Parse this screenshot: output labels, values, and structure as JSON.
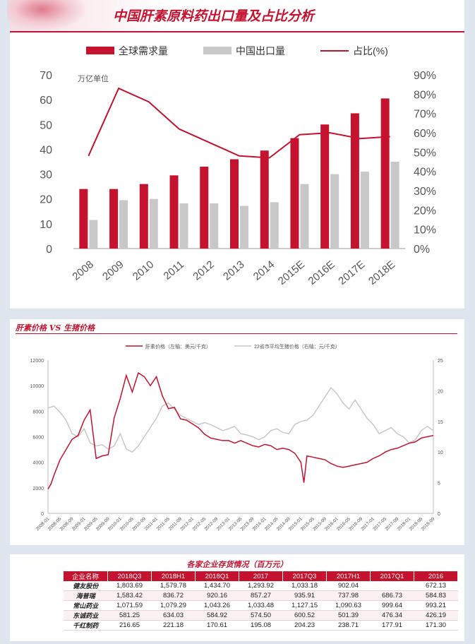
{
  "panel1": {
    "title": "中国肝素原料药出口量及占比分析",
    "unit_note": "万亿单位"
  },
  "panel2": {
    "title": "肝素价格 VS 生猪价格"
  },
  "panel3": {
    "title": "各家企业存货情况（百万元）",
    "table": {
      "headers": [
        "企业名称",
        "2018Q3",
        "2018H1",
        "2018Q1",
        "2017",
        "2017Q3",
        "2017H1",
        "2017Q1",
        "2016"
      ],
      "rows": [
        {
          "name": "健友股份",
          "cells": [
            "1,803.69",
            "1,579.78",
            "1,434.70",
            "1,293.92",
            "1,033.18",
            "902.04",
            "",
            "672.13"
          ]
        },
        {
          "name": "海普瑞",
          "cells": [
            "1,583.42",
            "836.72",
            "920.16",
            "857.27",
            "935.91",
            "737.98",
            "686.73",
            "584.83"
          ]
        },
        {
          "name": "常山药业",
          "cells": [
            "1,071.59",
            "1,079.29",
            "1,043.26",
            "1,033.48",
            "1,127.15",
            "1,090.63",
            "999.64",
            "993.21"
          ]
        },
        {
          "name": "东诚药业",
          "cells": [
            "581.25",
            "634.03",
            "584.92",
            "574.50",
            "600.52",
            "501.39",
            "476.34",
            "426.19"
          ]
        },
        {
          "name": "千红制药",
          "cells": [
            "216.65",
            "221.18",
            "170.61",
            "195.08",
            "204.23",
            "238.71",
            "177.91",
            "171.30"
          ]
        }
      ]
    }
  },
  "colors": {
    "red": "#c4122f",
    "gray": "#c8c8c8",
    "axis": "#555555"
  },
  "chart_data": [
    {
      "type": "bar",
      "title": "中国肝素原料药出口量及占比分析",
      "categories": [
        "2008",
        "2009",
        "2010",
        "2011",
        "2012",
        "2013",
        "2014",
        "2015E",
        "2016E",
        "2017E",
        "2018E"
      ],
      "series": [
        {
          "name": "全球需求量",
          "kind": "bar",
          "axis": "left",
          "values": [
            24,
            24,
            26,
            29.5,
            33,
            36,
            39.5,
            44.5,
            50,
            54.5,
            60.5
          ]
        },
        {
          "name": "中国出口量",
          "kind": "bar",
          "axis": "left",
          "values": [
            11.5,
            19.5,
            20,
            18.2,
            18.2,
            17.2,
            18.7,
            26,
            30,
            31,
            35
          ]
        },
        {
          "name": "占比(%)",
          "kind": "line",
          "axis": "right",
          "values": [
            48,
            83,
            76,
            62,
            55,
            48,
            47,
            59,
            60,
            57,
            58
          ]
        }
      ],
      "ylim": [
        0,
        70
      ],
      "y_ticks": [
        0,
        10,
        20,
        30,
        40,
        50,
        60,
        70
      ],
      "y2lim": [
        0,
        90
      ],
      "y2_ticks": [
        "0%",
        "10%",
        "20%",
        "30%",
        "40%",
        "50%",
        "60%",
        "70%",
        "80%",
        "90%"
      ],
      "legend": "top",
      "grid": false
    },
    {
      "type": "line",
      "title": "肝素价格 VS 生猪价格",
      "x_ticks": [
        "2008-01",
        "2008-05",
        "2008-09",
        "2009-01",
        "2009-05",
        "2009-09",
        "2010-01",
        "2010-05",
        "2010-09",
        "2011-01",
        "2011-05",
        "2011-09",
        "2012-01",
        "2012-05",
        "2012-09",
        "2013-01",
        "2013-05",
        "2013-09",
        "2014-01",
        "2014-05",
        "2014-09",
        "2015-01",
        "2015-05",
        "2015-09",
        "2016-01",
        "2016-05",
        "2016-09",
        "2017-01",
        "2017-05",
        "2017-09",
        "2018-01",
        "2018-05",
        "2018-09"
      ],
      "ylim": [
        0,
        12000
      ],
      "y_ticks": [
        0,
        2000,
        4000,
        6000,
        8000,
        10000,
        12000
      ],
      "y2lim": [
        0,
        25
      ],
      "y2_ticks": [
        0,
        5,
        10,
        15,
        20,
        25
      ],
      "legend": "top",
      "series": [
        {
          "name": "肝素价格（左轴：美元/千克）",
          "axis": "left",
          "x": [
            0,
            1,
            2,
            4,
            6,
            8,
            10,
            12,
            14,
            16,
            18,
            20,
            22,
            24,
            26,
            28,
            30,
            32,
            34,
            36,
            38,
            40,
            42,
            44,
            46,
            48,
            50,
            52,
            54,
            56,
            58,
            60,
            62,
            64,
            66,
            68,
            70,
            72,
            74,
            76,
            78,
            80,
            82,
            84,
            85,
            86,
            88,
            90,
            92,
            94,
            96,
            98,
            100,
            102,
            104,
            106,
            108,
            110,
            112,
            114,
            116,
            118,
            120,
            122,
            124,
            126,
            128
          ],
          "values": [
            1900,
            2300,
            3000,
            4200,
            5000,
            5800,
            6100,
            7300,
            8100,
            4300,
            4500,
            4600,
            7500,
            9000,
            10800,
            9500,
            11000,
            10700,
            10000,
            10700,
            9200,
            8200,
            8300,
            7400,
            7300,
            7000,
            6700,
            6200,
            5900,
            5800,
            5700,
            5700,
            5500,
            5700,
            5500,
            5300,
            5200,
            5400,
            5300,
            5000,
            5100,
            5000,
            4700,
            4000,
            2400,
            4500,
            4400,
            4300,
            4200,
            3900,
            3700,
            3600,
            3700,
            3800,
            3900,
            4000,
            4300,
            4500,
            4800,
            5000,
            5100,
            5300,
            5500,
            5600,
            5900,
            6000,
            6100
          ]
        },
        {
          "name": "22省市平均生猪价格（右轴：元/千克）",
          "axis": "right",
          "x": [
            0,
            2,
            4,
            6,
            8,
            10,
            12,
            14,
            16,
            18,
            20,
            22,
            24,
            26,
            28,
            30,
            32,
            34,
            36,
            38,
            40,
            42,
            44,
            46,
            48,
            50,
            52,
            54,
            56,
            58,
            60,
            62,
            64,
            66,
            68,
            70,
            72,
            74,
            76,
            78,
            80,
            82,
            84,
            86,
            88,
            90,
            92,
            94,
            96,
            98,
            100,
            102,
            104,
            106,
            108,
            110,
            112,
            114,
            116,
            118,
            120,
            122,
            124,
            126,
            128
          ],
          "values": [
            17.2,
            17.5,
            16.5,
            15.2,
            13.0,
            12.5,
            13.8,
            11.5,
            11.0,
            11.2,
            10.5,
            11.0,
            13.0,
            10.5,
            10.0,
            11.0,
            12.5,
            14.0,
            15.5,
            17.5,
            18.0,
            17.0,
            16.0,
            15.5,
            15.0,
            14.5,
            14.8,
            14.5,
            14.0,
            13.5,
            13.8,
            14.2,
            13.0,
            12.8,
            12.5,
            12.0,
            12.5,
            13.5,
            13.8,
            13.2,
            13.0,
            14.5,
            15.0,
            15.2,
            16.0,
            17.5,
            19.0,
            20.5,
            19.5,
            18.0,
            17.0,
            18.5,
            17.0,
            15.5,
            14.5,
            13.0,
            13.5,
            14.0,
            13.0,
            12.5,
            11.5,
            12.0,
            13.5,
            14.2,
            13.5
          ]
        }
      ]
    }
  ]
}
